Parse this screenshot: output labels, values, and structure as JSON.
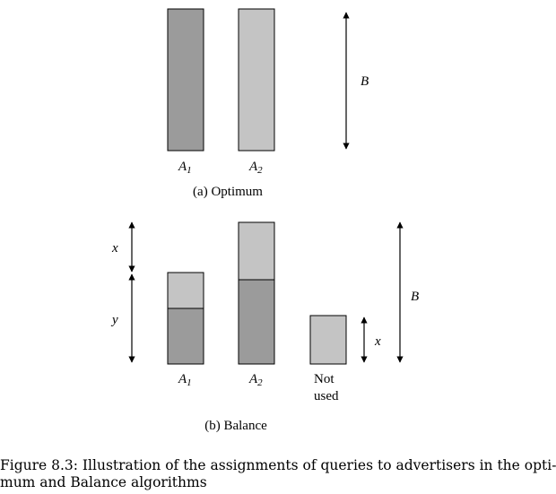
{
  "colors": {
    "dark_bar": "#9b9b9b",
    "light_bar": "#c4c4c4",
    "stroke": "#000000"
  },
  "panel_a": {
    "caption": "(a) Optimum",
    "bars": [
      {
        "label_letter": "A",
        "label_sub": "1",
        "fill": "dark"
      },
      {
        "label_letter": "A",
        "label_sub": "2",
        "fill": "light"
      }
    ],
    "arrow_label": "B"
  },
  "panel_b": {
    "caption": "(b) Balance",
    "bars": [
      {
        "label_letter": "A",
        "label_sub": "1"
      },
      {
        "label_letter": "A",
        "label_sub": "2"
      }
    ],
    "not_used_label_line1": "Not",
    "not_used_label_line2": "used",
    "left_arrow_labels": {
      "top": "x",
      "bottom": "y"
    },
    "small_arrow_label": "x",
    "right_arrow_label": "B"
  },
  "figure_caption": {
    "line1": "Figure 8.3: Illustration of the assignments of queries to advertisers in the opti-",
    "line2": "mum and Balance algorithms"
  }
}
